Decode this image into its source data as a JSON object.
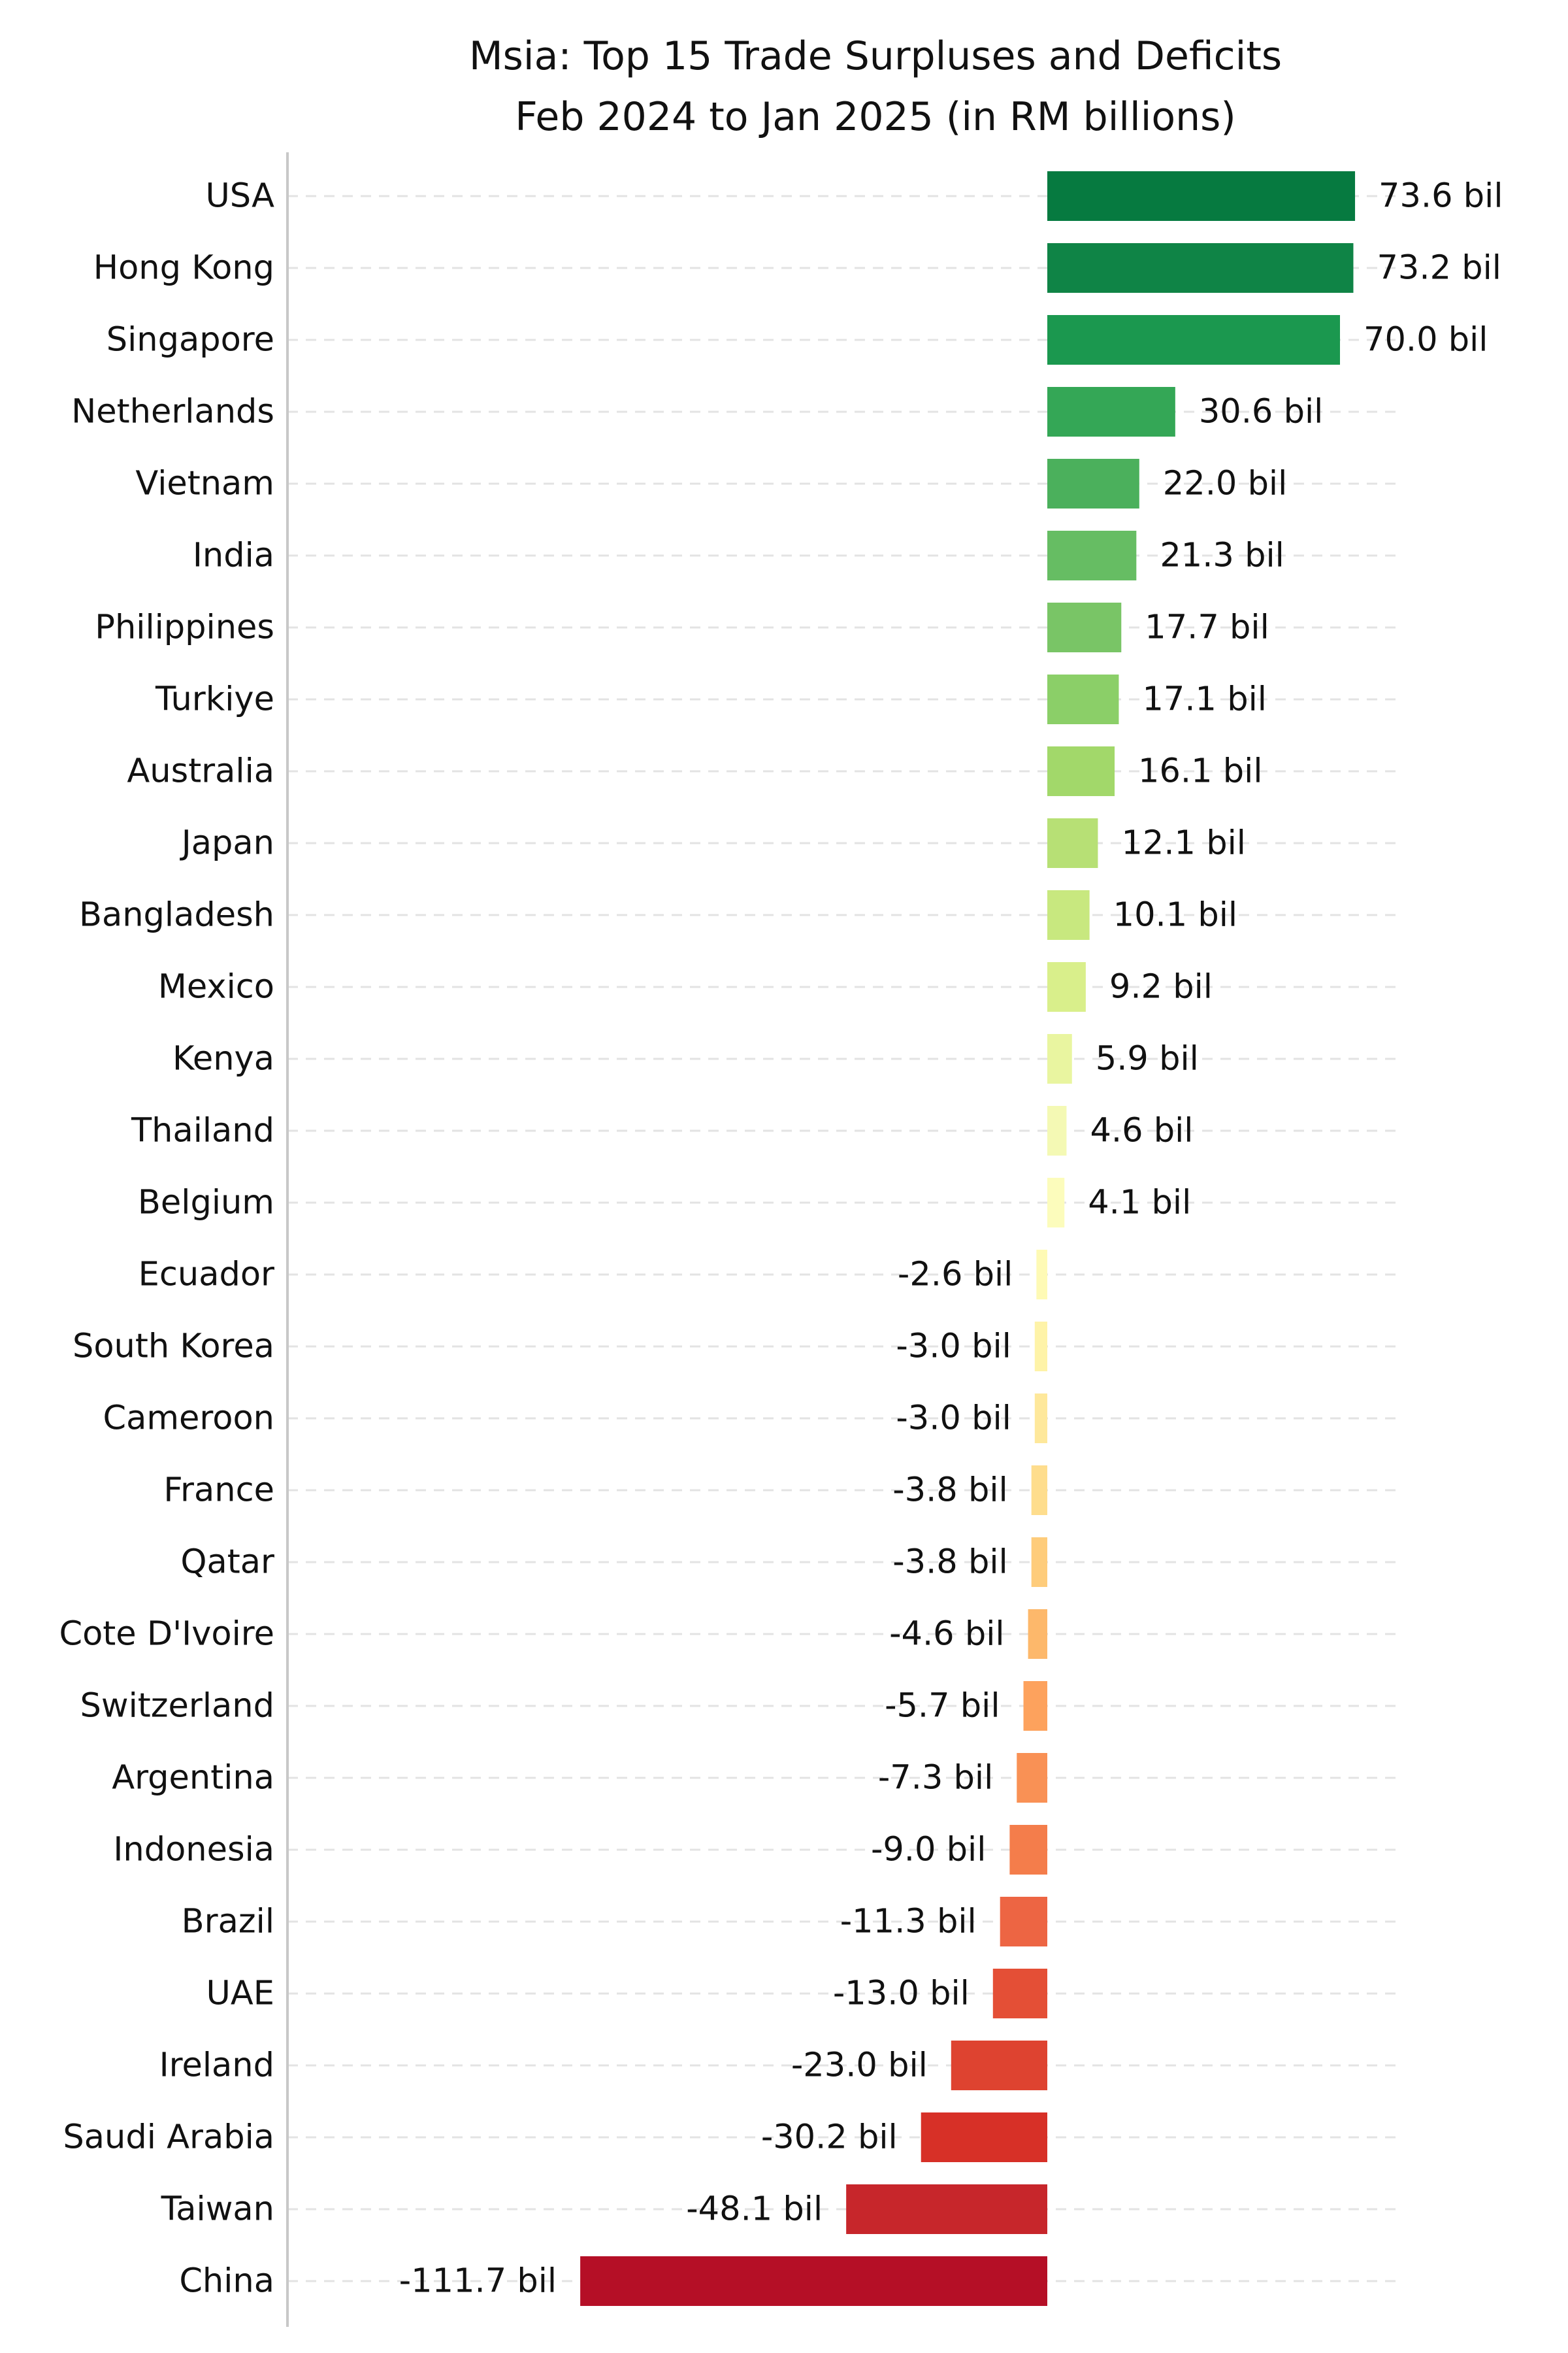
{
  "chart_data": {
    "type": "bar",
    "orientation": "horizontal",
    "title": "Msia: Top 15 Trade Surpluses and Deficits",
    "subtitle": "Feb 2024 to Jan 2025 (in RM billions)",
    "xlabel": "",
    "ylabel": "",
    "xlim": [
      -180,
      83
    ],
    "grid": "horizontal dashed",
    "colormap": "red-yellow-green",
    "categories": [
      "USA",
      "Hong Kong",
      "Singapore",
      "Netherlands",
      "Vietnam",
      "India",
      "Philippines",
      "Turkiye",
      "Australia",
      "Japan",
      "Bangladesh",
      "Mexico",
      "Kenya",
      "Thailand",
      "Belgium",
      "Ecuador",
      "South Korea",
      "Cameroon",
      "France",
      "Qatar",
      "Cote D'Ivoire",
      "Switzerland",
      "Argentina",
      "Indonesia",
      "Brazil",
      "UAE",
      "Ireland",
      "Saudi Arabia",
      "Taiwan",
      "China"
    ],
    "values": [
      73.6,
      73.2,
      70.0,
      30.6,
      22.0,
      21.3,
      17.7,
      17.1,
      16.1,
      12.1,
      10.1,
      9.2,
      5.9,
      4.6,
      4.1,
      -2.6,
      -3.0,
      -3.0,
      -3.8,
      -3.8,
      -4.6,
      -5.7,
      -7.3,
      -9.0,
      -11.3,
      -13.0,
      -23.0,
      -30.2,
      -48.1,
      -111.7
    ],
    "labels": [
      "73.6 bil",
      "73.2 bil",
      "70.0 bil",
      "30.6 bil",
      "22.0 bil",
      "21.3 bil",
      "17.7 bil",
      "17.1 bil",
      "16.1 bil",
      "12.1 bil",
      "10.1 bil",
      "9.2 bil",
      "5.9 bil",
      "4.6 bil",
      "4.1 bil",
      "-2.6 bil",
      "-3.0 bil",
      "-3.0 bil",
      "-3.8 bil",
      "-3.8 bil",
      "-4.6 bil",
      "-5.7 bil",
      "-7.3 bil",
      "-9.0 bil",
      "-11.3 bil",
      "-13.0 bil",
      "-23.0 bil",
      "-30.2 bil",
      "-48.1 bil",
      "-111.7 bil"
    ],
    "colors": [
      "#067a40",
      "#0f8446",
      "#1b984f",
      "#34a756",
      "#4bb05c",
      "#66bd63",
      "#79c566",
      "#8bcf68",
      "#a2d86a",
      "#b7e075",
      "#c8e87f",
      "#d9ef8b",
      "#e9f5a0",
      "#f4f9b4",
      "#fcfcbc",
      "#fefab5",
      "#fef3a8",
      "#fee89b",
      "#fedd8d",
      "#fecc7b",
      "#fdb86b",
      "#fda25d",
      "#f99155",
      "#f47d4b",
      "#ed6543",
      "#e44f36",
      "#de4330",
      "#d73027",
      "#c7262b",
      "#b50f26"
    ]
  }
}
